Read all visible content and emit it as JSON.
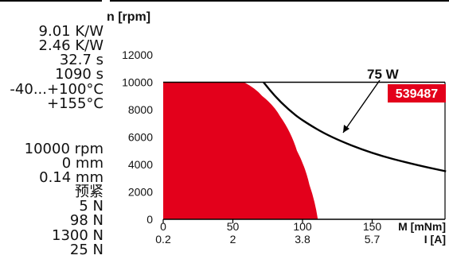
{
  "specs": {
    "thermal": [
      "9.01 K/W",
      "2.46 K/W",
      "32.7 s",
      "1090 s",
      "-40...+100°C",
      "+155°C"
    ],
    "mechanical": [
      "10000 rpm",
      "0 mm",
      "0.14 mm",
      "预紧",
      "5 N",
      "98 N",
      "1300 N",
      "25 N"
    ]
  },
  "colors": {
    "operating_area": "#e3001b",
    "curve": "#000000",
    "badge_bg": "#e3001b",
    "badge_text": "#ffffff"
  },
  "chart_data": {
    "type": "area",
    "ylabel": "n [rpm]",
    "xlabel": "M [mNm]",
    "x2label": "I [A]",
    "y_ticks": [
      "0",
      "2000",
      "4000",
      "6000",
      "8000",
      "10000",
      "12000"
    ],
    "x_ticks": [
      "0",
      "50",
      "100",
      "150"
    ],
    "x2_ticks": [
      "0.2",
      "2",
      "3.8",
      "5.7"
    ],
    "xlim": [
      0,
      200
    ],
    "ylim": [
      0,
      12000
    ],
    "frame_ylim": [
      0,
      10000
    ],
    "continuous_operation_area": {
      "points": [
        [
          0,
          10000
        ],
        [
          35,
          10000
        ],
        [
          58,
          10000
        ],
        [
          71,
          9000
        ],
        [
          84,
          7500
        ],
        [
          96,
          5000
        ],
        [
          105,
          2500
        ],
        [
          111,
          0
        ],
        [
          0,
          0
        ]
      ]
    },
    "power_curve": {
      "label": "75 W",
      "points": [
        [
          72,
          10000
        ],
        [
          80,
          9000
        ],
        [
          90,
          8000
        ],
        [
          100,
          7200
        ],
        [
          120,
          6000
        ],
        [
          150,
          4800
        ],
        [
          180,
          4000
        ],
        [
          203,
          3500
        ]
      ]
    },
    "annotation": {
      "text": "539487"
    }
  }
}
